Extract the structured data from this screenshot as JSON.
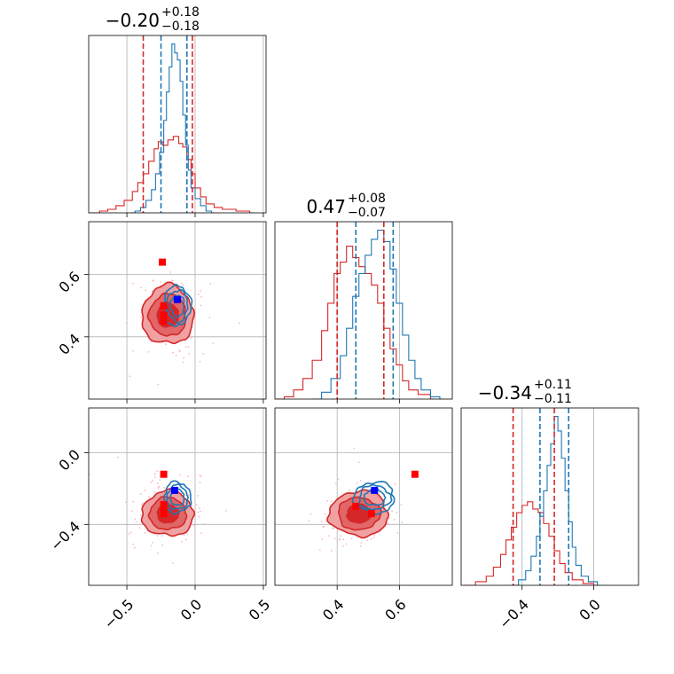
{
  "figure": {
    "kind": "corner plot"
  },
  "colors": {
    "red": "#d62728",
    "blue": "#1f77b4",
    "red_fill_outer": "#f0a1a2",
    "red_fill_mid": "#e06667",
    "red_fill_inner": "#d62728",
    "marker_red": "#ff0000",
    "marker_blue": "#0000ff",
    "grid": "#b0b0b0",
    "scatter": "#f6b9c6"
  },
  "chart_data": {
    "type": "scatter",
    "subtype": "corner",
    "grid": true,
    "parameters": [
      {
        "index": 0,
        "range": [
          -0.78,
          0.52
        ],
        "ticks": [
          "−0.5",
          "0.0",
          "0.5"
        ],
        "tick_values": [
          -0.5,
          0.0,
          0.5
        ],
        "title": {
          "median": "−0.20",
          "plus": "+0.18",
          "minus": "−0.18"
        }
      },
      {
        "index": 1,
        "range": [
          0.2,
          0.77
        ],
        "ticks": [
          "0.4",
          "0.6"
        ],
        "tick_values": [
          0.4,
          0.6
        ],
        "title": {
          "median": "0.47",
          "plus": "+0.08",
          "minus": "−0.07"
        }
      },
      {
        "index": 2,
        "range": [
          -0.74,
          0.25
        ],
        "ticks": [
          "−0.4",
          "0.0"
        ],
        "tick_values": [
          -0.4,
          0.0
        ],
        "title": {
          "median": "−0.34",
          "plus": "+0.11",
          "minus": "−0.11"
        }
      }
    ],
    "marginals": [
      {
        "param": 0,
        "quantile_lines": {
          "red": [
            -0.38,
            -0.02
          ],
          "blue": [
            -0.25,
            -0.06
          ]
        },
        "red_hist": [
          [
            -0.78,
            0.0
          ],
          [
            -0.7,
            0.01
          ],
          [
            -0.64,
            0.02
          ],
          [
            -0.58,
            0.04
          ],
          [
            -0.52,
            0.07
          ],
          [
            -0.46,
            0.12
          ],
          [
            -0.42,
            0.17
          ],
          [
            -0.38,
            0.22
          ],
          [
            -0.34,
            0.29
          ],
          [
            -0.3,
            0.36
          ],
          [
            -0.27,
            0.4
          ],
          [
            -0.24,
            0.38
          ],
          [
            -0.2,
            0.41
          ],
          [
            -0.16,
            0.43
          ],
          [
            -0.12,
            0.39
          ],
          [
            -0.09,
            0.37
          ],
          [
            -0.06,
            0.3
          ],
          [
            -0.03,
            0.22
          ],
          [
            0.0,
            0.14
          ],
          [
            0.04,
            0.09
          ],
          [
            0.08,
            0.05
          ],
          [
            0.14,
            0.03
          ],
          [
            0.2,
            0.02
          ],
          [
            0.3,
            0.01
          ],
          [
            0.4,
            0.0
          ]
        ],
        "blue_hist": [
          [
            -0.48,
            0.0
          ],
          [
            -0.44,
            0.01
          ],
          [
            -0.4,
            0.03
          ],
          [
            -0.36,
            0.07
          ],
          [
            -0.32,
            0.13
          ],
          [
            -0.29,
            0.22
          ],
          [
            -0.26,
            0.34
          ],
          [
            -0.23,
            0.52
          ],
          [
            -0.21,
            0.68
          ],
          [
            -0.19,
            0.82
          ],
          [
            -0.17,
            0.95
          ],
          [
            -0.15,
            0.9
          ],
          [
            -0.13,
            0.86
          ],
          [
            -0.11,
            0.74
          ],
          [
            -0.09,
            0.55
          ],
          [
            -0.07,
            0.38
          ],
          [
            -0.05,
            0.24
          ],
          [
            -0.03,
            0.14
          ],
          [
            0.0,
            0.08
          ],
          [
            0.04,
            0.04
          ],
          [
            0.08,
            0.01
          ],
          [
            0.12,
            0.0
          ]
        ]
      },
      {
        "param": 1,
        "quantile_lines": {
          "red": [
            0.4,
            0.55
          ],
          "blue": [
            0.46,
            0.58
          ]
        },
        "red_hist": [
          [
            0.2,
            0.0
          ],
          [
            0.23,
            0.01
          ],
          [
            0.26,
            0.04
          ],
          [
            0.29,
            0.09
          ],
          [
            0.32,
            0.17
          ],
          [
            0.35,
            0.3
          ],
          [
            0.37,
            0.42
          ],
          [
            0.39,
            0.55
          ],
          [
            0.41,
            0.6
          ],
          [
            0.43,
            0.67
          ],
          [
            0.45,
            0.62
          ],
          [
            0.47,
            0.58
          ],
          [
            0.49,
            0.55
          ],
          [
            0.51,
            0.5
          ],
          [
            0.53,
            0.42
          ],
          [
            0.55,
            0.31
          ],
          [
            0.57,
            0.22
          ],
          [
            0.59,
            0.15
          ],
          [
            0.61,
            0.08
          ],
          [
            0.63,
            0.04
          ],
          [
            0.66,
            0.02
          ],
          [
            0.7,
            0.0
          ]
        ],
        "blue_hist": [
          [
            0.32,
            0.0
          ],
          [
            0.35,
            0.03
          ],
          [
            0.38,
            0.09
          ],
          [
            0.41,
            0.19
          ],
          [
            0.43,
            0.31
          ],
          [
            0.45,
            0.45
          ],
          [
            0.47,
            0.55
          ],
          [
            0.49,
            0.63
          ],
          [
            0.51,
            0.7
          ],
          [
            0.53,
            0.74
          ],
          [
            0.55,
            0.69
          ],
          [
            0.57,
            0.57
          ],
          [
            0.59,
            0.42
          ],
          [
            0.61,
            0.28
          ],
          [
            0.63,
            0.17
          ],
          [
            0.65,
            0.09
          ],
          [
            0.67,
            0.04
          ],
          [
            0.7,
            0.01
          ],
          [
            0.73,
            0.0
          ]
        ]
      },
      {
        "param": 2,
        "quantile_lines": {
          "red": [
            -0.45,
            -0.22
          ],
          "blue": [
            -0.3,
            -0.14
          ]
        },
        "red_hist": [
          [
            -0.72,
            0.0
          ],
          [
            -0.66,
            0.02
          ],
          [
            -0.6,
            0.05
          ],
          [
            -0.56,
            0.1
          ],
          [
            -0.52,
            0.17
          ],
          [
            -0.49,
            0.25
          ],
          [
            -0.46,
            0.32
          ],
          [
            -0.43,
            0.4
          ],
          [
            -0.4,
            0.44
          ],
          [
            -0.37,
            0.46
          ],
          [
            -0.34,
            0.42
          ],
          [
            -0.31,
            0.4
          ],
          [
            -0.28,
            0.34
          ],
          [
            -0.25,
            0.27
          ],
          [
            -0.22,
            0.19
          ],
          [
            -0.19,
            0.12
          ],
          [
            -0.16,
            0.07
          ],
          [
            -0.12,
            0.03
          ],
          [
            -0.06,
            0.01
          ],
          [
            0.0,
            0.0
          ]
        ],
        "blue_hist": [
          [
            -0.46,
            0.0
          ],
          [
            -0.42,
            0.03
          ],
          [
            -0.38,
            0.08
          ],
          [
            -0.35,
            0.16
          ],
          [
            -0.32,
            0.27
          ],
          [
            -0.3,
            0.38
          ],
          [
            -0.28,
            0.52
          ],
          [
            -0.26,
            0.66
          ],
          [
            -0.24,
            0.78
          ],
          [
            -0.22,
            0.93
          ],
          [
            -0.2,
            0.85
          ],
          [
            -0.18,
            0.7
          ],
          [
            -0.16,
            0.52
          ],
          [
            -0.14,
            0.35
          ],
          [
            -0.12,
            0.21
          ],
          [
            -0.1,
            0.11
          ],
          [
            -0.07,
            0.05
          ],
          [
            -0.03,
            0.02
          ],
          [
            0.02,
            0.0
          ]
        ]
      }
    ],
    "joints": [
      {
        "x_param": 0,
        "y_param": 1,
        "center": [
          -0.2,
          0.47
        ],
        "spread": [
          0.18,
          0.09
        ],
        "blue_center": [
          -0.13,
          0.5
        ],
        "blue_spread": [
          0.09,
          0.06
        ],
        "red_markers": [
          [
            -0.24,
            0.64
          ],
          [
            -0.23,
            0.5
          ],
          [
            -0.23,
            0.47
          ],
          [
            -0.23,
            0.45
          ]
        ],
        "blue_marker": [
          -0.13,
          0.52
        ]
      },
      {
        "x_param": 0,
        "y_param": 2,
        "center": [
          -0.2,
          -0.34
        ],
        "spread": [
          0.18,
          0.12
        ],
        "blue_center": [
          -0.13,
          -0.25
        ],
        "blue_spread": [
          0.09,
          0.08
        ],
        "red_markers": [
          [
            -0.23,
            -0.12
          ],
          [
            -0.23,
            -0.29
          ],
          [
            -0.23,
            -0.32
          ],
          [
            -0.23,
            -0.34
          ]
        ],
        "blue_marker": [
          -0.15,
          -0.21
        ]
      },
      {
        "x_param": 1,
        "y_param": 2,
        "center": [
          0.47,
          -0.34
        ],
        "spread": [
          0.09,
          0.12
        ],
        "blue_center": [
          0.52,
          -0.25
        ],
        "blue_spread": [
          0.06,
          0.08
        ],
        "red_markers": [
          [
            0.65,
            -0.12
          ],
          [
            0.46,
            -0.3
          ],
          [
            0.51,
            -0.34
          ]
        ],
        "blue_marker": [
          0.52,
          -0.21
        ]
      }
    ]
  }
}
